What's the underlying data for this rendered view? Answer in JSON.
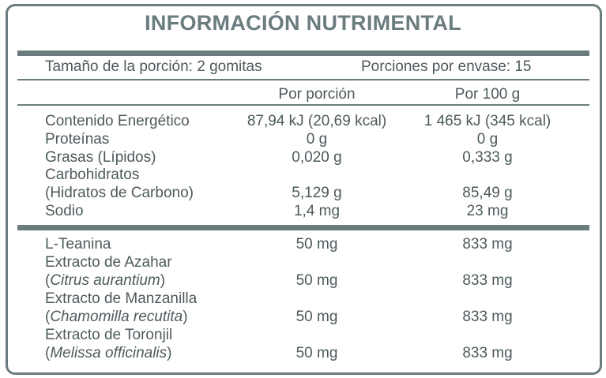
{
  "header": {
    "title": "INFORMACIÓN NUTRIMENTAL"
  },
  "serving": {
    "size": "Tamaño de la porción: 2 gomitas",
    "per_container": "Porciones por envase: 15"
  },
  "columns": [
    "Por porción",
    "Por 100 g"
  ],
  "nutrients": [
    {
      "label": "Contenido Energético",
      "per_portion": "87,94 kJ (20,69 kcal)",
      "per_100g": "1 465 kJ (345 kcal)"
    },
    {
      "label": "Proteínas",
      "per_portion": "0 g",
      "per_100g": "0 g"
    },
    {
      "label": "Grasas (Lípidos)",
      "per_portion": "0,020 g",
      "per_100g": "0,333 g"
    },
    {
      "label": "Carbohidratos",
      "sub": "(Hidratos de Carbono)",
      "per_portion": "5,129 g",
      "per_100g": "85,49 g"
    },
    {
      "label": "Sodio",
      "per_portion": "1,4 mg",
      "per_100g": "23 mg"
    }
  ],
  "actives": [
    {
      "label": "L-Teanina",
      "per_portion": "50 mg",
      "per_100g": "833 mg"
    },
    {
      "label": "Extracto de Azahar",
      "sub": [
        "(",
        "Citrus aurantium",
        ")"
      ],
      "per_portion": "50 mg",
      "per_100g": "833 mg"
    },
    {
      "label": "Extracto de Manzanilla",
      "sub": [
        "(",
        "Chamomilla recutita",
        ")"
      ],
      "per_portion": "50 mg",
      "per_100g": "833 mg"
    },
    {
      "label": "Extracto de Toronjil",
      "sub": [
        "(",
        "Melissa officinalis",
        ")"
      ],
      "per_portion": "50 mg",
      "per_100g": "833 mg"
    }
  ]
}
